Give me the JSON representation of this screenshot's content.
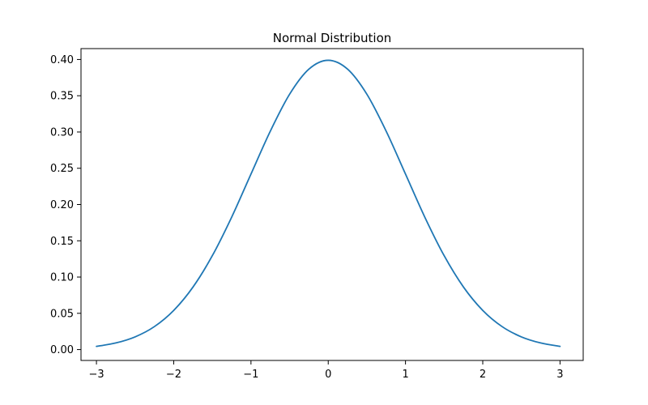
{
  "chart_data": {
    "type": "line",
    "title": "Normal Distribution",
    "xlabel": "",
    "ylabel": "",
    "xlim": [
      -3.2,
      3.3
    ],
    "ylim": [
      -0.015,
      0.415
    ],
    "x_ticks": [
      -3,
      -2,
      -1,
      0,
      1,
      2,
      3
    ],
    "x_tick_labels": [
      "−3",
      "−2",
      "−1",
      "0",
      "1",
      "2",
      "3"
    ],
    "y_ticks": [
      0.0,
      0.05,
      0.1,
      0.15,
      0.2,
      0.25,
      0.3,
      0.35,
      0.4
    ],
    "y_tick_labels": [
      "0.00",
      "0.05",
      "0.10",
      "0.15",
      "0.20",
      "0.25",
      "0.30",
      "0.35",
      "0.40"
    ],
    "grid": false,
    "series": [
      {
        "color": "#1f77b4",
        "x": [
          -3.0,
          -2.75,
          -2.5,
          -2.25,
          -2.0,
          -1.75,
          -1.5,
          -1.25,
          -1.0,
          -0.75,
          -0.5,
          -0.25,
          0.0,
          0.25,
          0.5,
          0.75,
          1.0,
          1.25,
          1.5,
          1.75,
          2.0,
          2.25,
          2.5,
          2.75,
          3.0
        ],
        "y": [
          0.0044,
          0.0091,
          0.0175,
          0.0317,
          0.054,
          0.0863,
          0.1295,
          0.1826,
          0.242,
          0.3011,
          0.3521,
          0.3867,
          0.3989,
          0.3867,
          0.3521,
          0.3011,
          0.242,
          0.1826,
          0.1295,
          0.0863,
          0.054,
          0.0317,
          0.0175,
          0.0091,
          0.0044
        ]
      }
    ]
  }
}
